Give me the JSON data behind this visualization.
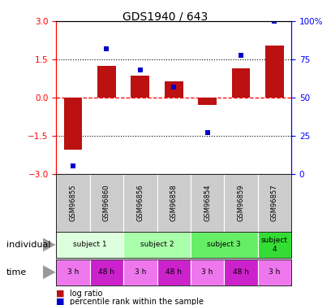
{
  "title": "GDS1940 / 643",
  "samples": [
    "GSM96855",
    "GSM96860",
    "GSM96856",
    "GSM96858",
    "GSM96854",
    "GSM96859",
    "GSM96857"
  ],
  "log_ratio": [
    -2.05,
    1.25,
    0.85,
    0.65,
    -0.28,
    1.15,
    2.05
  ],
  "percentile_rank": [
    5,
    82,
    68,
    57,
    27,
    78,
    100
  ],
  "ylim_left": [
    -3,
    3
  ],
  "ylim_right": [
    0,
    100
  ],
  "yticks_left": [
    -3,
    -1.5,
    0,
    1.5,
    3
  ],
  "yticks_right": [
    0,
    25,
    50,
    75,
    100
  ],
  "bar_color": "#bb1111",
  "scatter_color": "#0000cc",
  "bar_width": 0.55,
  "subjects": [
    {
      "label": "subject 1",
      "start": 0,
      "end": 2,
      "color": "#ddffdd"
    },
    {
      "label": "subject 2",
      "start": 2,
      "end": 4,
      "color": "#aaffaa"
    },
    {
      "label": "subject 3",
      "start": 4,
      "end": 6,
      "color": "#66ee66"
    },
    {
      "label": "subject 4",
      "start": 6,
      "end": 7,
      "color": "#33dd33"
    }
  ],
  "times": [
    "3 h",
    "48 h",
    "3 h",
    "48 h",
    "3 h",
    "48 h",
    "3 h"
  ],
  "time_colors": [
    "#ee77ee",
    "#cc22cc",
    "#ee77ee",
    "#cc22cc",
    "#ee77ee",
    "#cc22cc",
    "#ee77ee"
  ],
  "legend_bar_label": "log ratio",
  "legend_scatter_label": "percentile rank within the sample",
  "gsm_bg_color": "#cccccc",
  "individual_label": "individual",
  "time_label": "time",
  "figsize": [
    4.08,
    3.75
  ],
  "dpi": 100
}
